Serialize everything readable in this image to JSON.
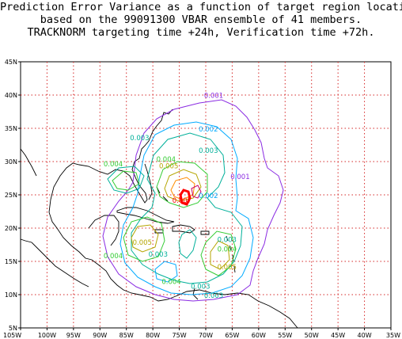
{
  "title": {
    "line1": "Prediction Error Variance as a function of target region location",
    "line2": "based on the 99091300 VBAR ensemble of 41 members.",
    "line3": "TRACKNORM targeting time +24h, Verification time +72h."
  },
  "axes": {
    "lat_labels": [
      "5N",
      "10N",
      "15N",
      "20N",
      "25N",
      "30N",
      "35N",
      "40N",
      "45N"
    ],
    "lon_labels": [
      "105W",
      "100W",
      "95W",
      "90W",
      "85W",
      "80W",
      "75W",
      "70W",
      "65W",
      "60W",
      "55W",
      "50W",
      "45W",
      "40W",
      "35W"
    ],
    "lon_range": [
      -105,
      -35
    ],
    "lat_range": [
      5,
      45
    ],
    "grid": "dotted red every 5 degrees"
  },
  "colors": {
    "c001": "#8a2be2",
    "c002": "#00aaff",
    "c003": "#00b09a",
    "c004": "#33cc33",
    "c005": "#b5a500",
    "c006": "#ff8c00",
    "c007": "#ff0000",
    "grid": "#d62828"
  },
  "contour_labels": [
    {
      "text": "0.001",
      "lon": -68.5,
      "lat": 39.6,
      "color": "c001"
    },
    {
      "text": "0.001",
      "lon": -63.5,
      "lat": 27.4,
      "color": "c001"
    },
    {
      "text": "0.002",
      "lon": -69.5,
      "lat": 34.5,
      "color": "c002"
    },
    {
      "text": "0.002",
      "lon": -69.5,
      "lat": 24.5,
      "color": "c002"
    },
    {
      "text": "0.003",
      "lon": -82.5,
      "lat": 33.2,
      "color": "c003"
    },
    {
      "text": "0.003",
      "lon": -69.5,
      "lat": 31.3,
      "color": "c003"
    },
    {
      "text": "0.003",
      "lon": -66.0,
      "lat": 17.9,
      "color": "c003"
    },
    {
      "text": "0.003",
      "lon": -79.0,
      "lat": 15.7,
      "color": "c003"
    },
    {
      "text": "0.003",
      "lon": -71.0,
      "lat": 10.9,
      "color": "c003"
    },
    {
      "text": "0.003",
      "lon": -68.5,
      "lat": 9.5,
      "color": "c003"
    },
    {
      "text": "0.004",
      "lon": -87.5,
      "lat": 29.3,
      "color": "c004"
    },
    {
      "text": "0.004",
      "lon": -77.5,
      "lat": 30.0,
      "color": "c004"
    },
    {
      "text": "0.004",
      "lon": -66.0,
      "lat": 16.5,
      "color": "c004"
    },
    {
      "text": "0.004",
      "lon": -87.5,
      "lat": 15.5,
      "color": "c004"
    },
    {
      "text": "0.004",
      "lon": -76.5,
      "lat": 11.6,
      "color": "c004"
    },
    {
      "text": "0.005",
      "lon": -77.0,
      "lat": 29.0,
      "color": "c005"
    },
    {
      "text": "0.005",
      "lon": -82.0,
      "lat": 17.5,
      "color": "c005"
    },
    {
      "text": "0.005",
      "lon": -66.0,
      "lat": 13.8,
      "color": "c005"
    },
    {
      "text": "0.007",
      "lon": -74.5,
      "lat": 23.8,
      "color": "c007"
    }
  ],
  "lon_ticks_text_hint": "labels below map",
  "right_edge": "35W"
}
